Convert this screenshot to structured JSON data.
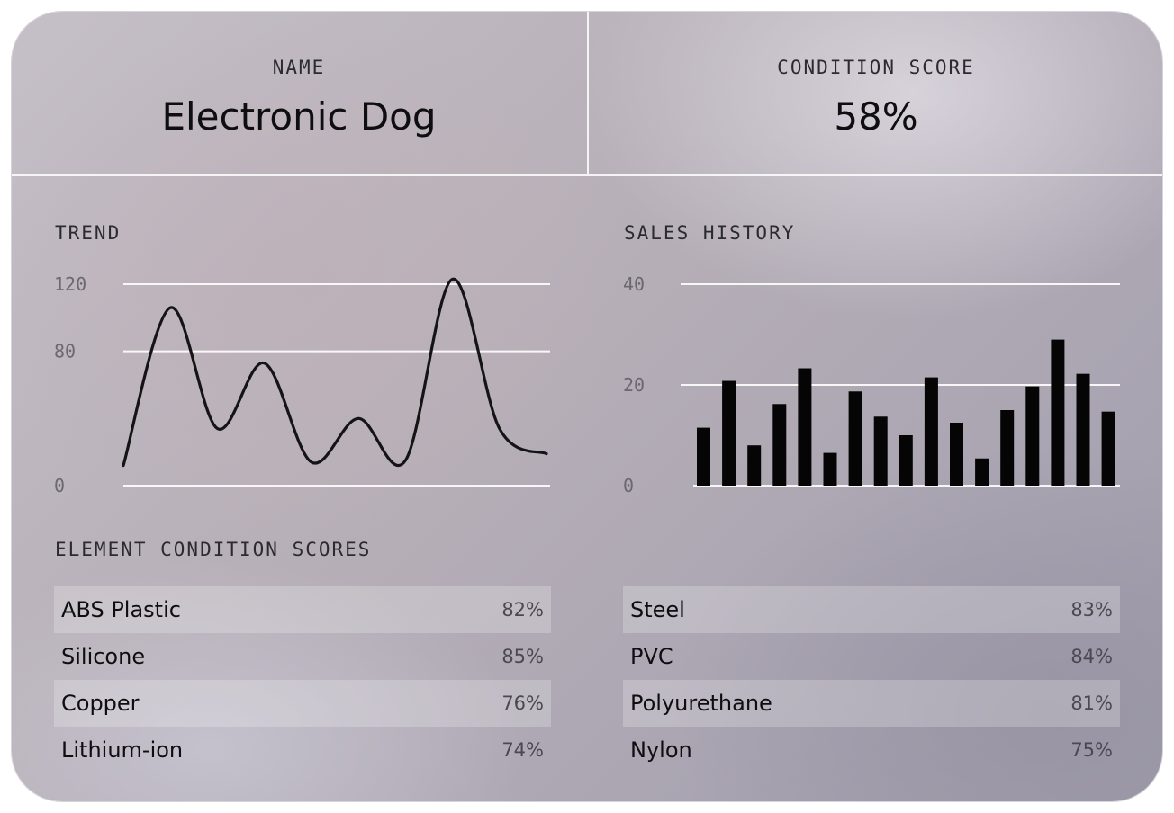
{
  "header": {
    "name_label": "NAME",
    "name_value": "Electronic Dog",
    "score_label": "CONDITION SCORE",
    "score_value": "58%"
  },
  "trend": {
    "label": "TREND",
    "chart_data": {
      "type": "line",
      "title": "TREND",
      "xlabel": "",
      "ylabel": "",
      "ylim": [
        0,
        120
      ],
      "yticks": [
        "0",
        "80",
        "120"
      ],
      "ytick_values": [
        0,
        80,
        120
      ],
      "grid": true,
      "x": [
        0,
        1,
        2,
        3,
        4,
        5,
        6,
        7,
        8,
        9
      ],
      "values": [
        12,
        106,
        34,
        73,
        14,
        40,
        15,
        123,
        34,
        19
      ]
    }
  },
  "sales": {
    "label": "SALES HISTORY",
    "chart_data": {
      "type": "bar",
      "title": "SALES HISTORY",
      "xlabel": "",
      "ylabel": "",
      "ylim": [
        0,
        40
      ],
      "yticks": [
        "0",
        "20",
        "40"
      ],
      "ytick_values": [
        0,
        20,
        40
      ],
      "grid": true,
      "values": [
        11.5,
        20.8,
        8,
        16.2,
        23.3,
        6.5,
        18.7,
        13.7,
        10,
        21.5,
        12.5,
        5.4,
        15,
        19.7,
        29,
        22.2,
        14.7
      ]
    }
  },
  "elements": {
    "label": "ELEMENT CONDITION SCORES",
    "left": [
      {
        "name": "ABS Plastic",
        "score": "82%"
      },
      {
        "name": "Silicone",
        "score": "85%"
      },
      {
        "name": "Copper",
        "score": "76%"
      },
      {
        "name": "Lithium-ion",
        "score": "74%"
      }
    ],
    "right": [
      {
        "name": "Steel",
        "score": "83%"
      },
      {
        "name": "PVC",
        "score": "84%"
      },
      {
        "name": "Polyurethane",
        "score": "81%"
      },
      {
        "name": "Nylon",
        "score": "75%"
      }
    ]
  }
}
